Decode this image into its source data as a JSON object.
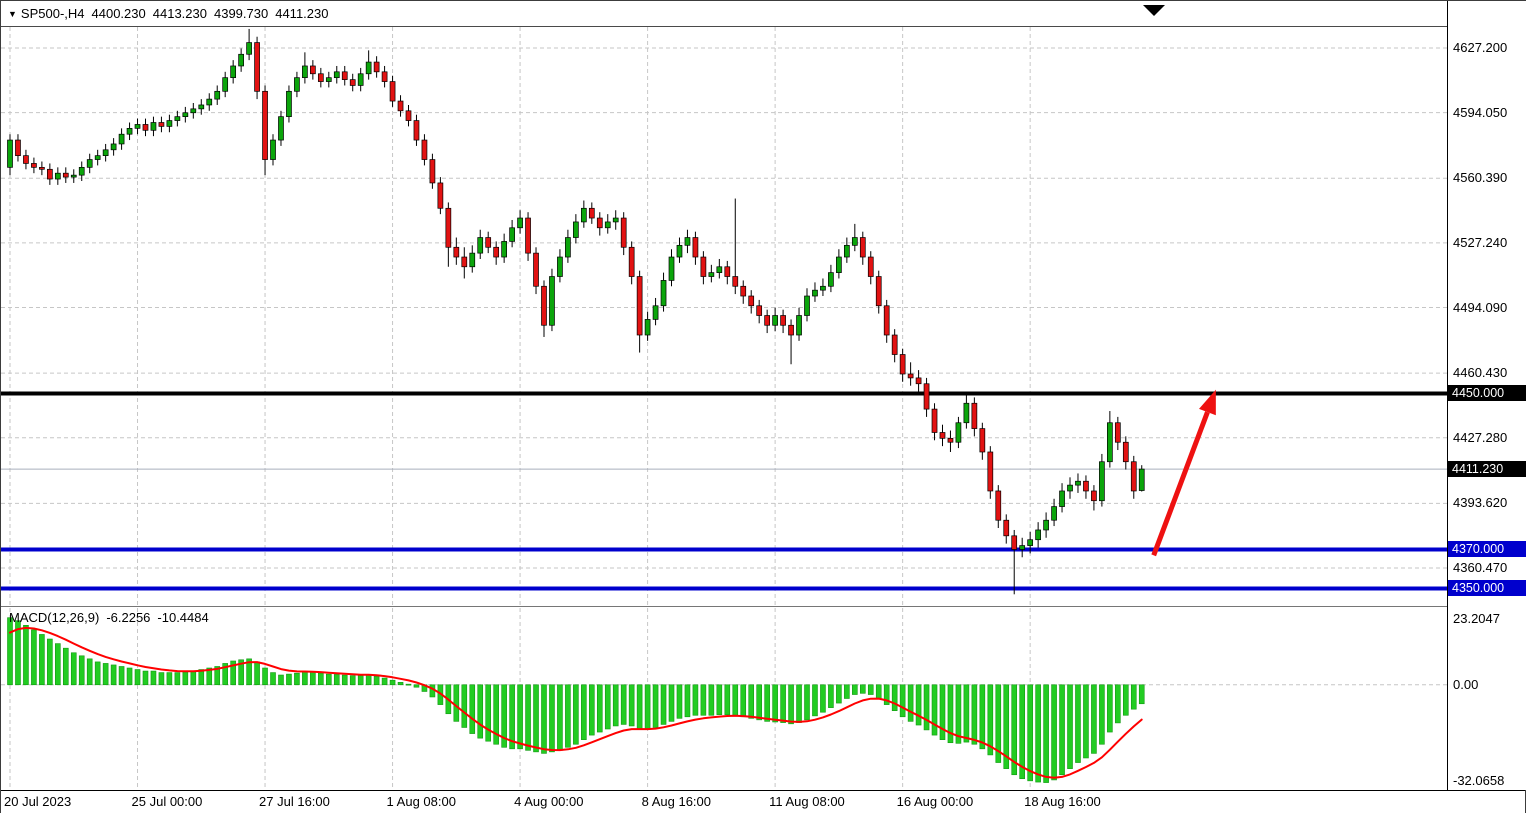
{
  "header": {
    "symbol_timeframe": "SP500-,H4",
    "open": "4400.230",
    "high": "4413.230",
    "low": "4399.730",
    "close": "4411.230"
  },
  "chart_data": {
    "type": "candlestick",
    "symbol": "SP500-",
    "timeframe": "H4",
    "x_axis": {
      "labels": [
        {
          "label": "20 Jul 2023",
          "bar": 0
        },
        {
          "label": "25 Jul 00:00",
          "bar": 16
        },
        {
          "label": "27 Jul 16:00",
          "bar": 32
        },
        {
          "label": "1 Aug 08:00",
          "bar": 48
        },
        {
          "label": "4 Aug 00:00",
          "bar": 64
        },
        {
          "label": "8 Aug 16:00",
          "bar": 80
        },
        {
          "label": "11 Aug 08:00",
          "bar": 96
        },
        {
          "label": "16 Aug 00:00",
          "bar": 112
        },
        {
          "label": "18 Aug 16:00",
          "bar": 128
        }
      ]
    },
    "y_axis": {
      "range": [
        4341.0,
        4638.5
      ],
      "gridlines": [
        {
          "label": "4627.200",
          "value": 4627.2
        },
        {
          "label": "4594.050",
          "value": 4594.05
        },
        {
          "label": "4560.390",
          "value": 4560.39
        },
        {
          "label": "4527.240",
          "value": 4527.24
        },
        {
          "label": "4494.090",
          "value": 4494.09
        },
        {
          "label": "4460.430",
          "value": 4460.43
        },
        {
          "label": "4427.280",
          "value": 4427.28
        },
        {
          "label": "4393.620",
          "value": 4393.62
        },
        {
          "label": "4360.470",
          "value": 4360.47
        }
      ],
      "tags": [
        {
          "label": "4450.000",
          "value": 4450.0,
          "bg": "#000000"
        },
        {
          "label": "4411.230",
          "value": 4411.23,
          "bg": "#000000"
        },
        {
          "label": "4370.000",
          "value": 4370.0,
          "bg": "#0000CD"
        },
        {
          "label": "4350.000",
          "value": 4350.0,
          "bg": "#0000CD"
        }
      ]
    },
    "candles": [
      [
        4566,
        4583,
        4562,
        4580
      ],
      [
        4580,
        4583,
        4569,
        4572
      ],
      [
        4572,
        4575,
        4565,
        4568
      ],
      [
        4568,
        4571,
        4563,
        4566
      ],
      [
        4566,
        4569,
        4562,
        4565
      ],
      [
        4565,
        4568,
        4557,
        4560
      ],
      [
        4560,
        4566,
        4557,
        4563
      ],
      [
        4563,
        4566,
        4558,
        4561
      ],
      [
        4561,
        4565,
        4558,
        4562
      ],
      [
        4562,
        4569,
        4559,
        4566
      ],
      [
        4566,
        4573,
        4563,
        4570
      ],
      [
        4570,
        4575,
        4567,
        4572
      ],
      [
        4572,
        4578,
        4569,
        4575
      ],
      [
        4575,
        4581,
        4572,
        4578
      ],
      [
        4578,
        4586,
        4575,
        4583
      ],
      [
        4583,
        4589,
        4580,
        4586
      ],
      [
        4586,
        4591,
        4583,
        4588
      ],
      [
        4588,
        4591,
        4582,
        4585
      ],
      [
        4585,
        4592,
        4582,
        4589
      ],
      [
        4589,
        4592,
        4584,
        4587
      ],
      [
        4587,
        4593,
        4584,
        4590
      ],
      [
        4590,
        4595,
        4587,
        4592
      ],
      [
        4592,
        4597,
        4589,
        4594
      ],
      [
        4594,
        4599,
        4591,
        4596
      ],
      [
        4596,
        4601,
        4593,
        4598
      ],
      [
        4598,
        4604,
        4595,
        4601
      ],
      [
        4601,
        4608,
        4598,
        4605
      ],
      [
        4605,
        4615,
        4602,
        4612
      ],
      [
        4612,
        4621,
        4609,
        4618
      ],
      [
        4618,
        4627,
        4615,
        4624
      ],
      [
        4624,
        4637,
        4621,
        4630
      ],
      [
        4630,
        4633,
        4601,
        4605
      ],
      [
        4605,
        4608,
        4562,
        4570
      ],
      [
        4570,
        4583,
        4567,
        4580
      ],
      [
        4580,
        4595,
        4577,
        4592
      ],
      [
        4592,
        4608,
        4589,
        4605
      ],
      [
        4605,
        4615,
        4602,
        4612
      ],
      [
        4612,
        4625,
        4609,
        4618
      ],
      [
        4618,
        4621,
        4611,
        4614
      ],
      [
        4614,
        4617,
        4607,
        4610
      ],
      [
        4610,
        4615,
        4607,
        4612
      ],
      [
        4612,
        4618,
        4609,
        4615
      ],
      [
        4615,
        4618,
        4608,
        4611
      ],
      [
        4611,
        4614,
        4605,
        4608
      ],
      [
        4608,
        4617,
        4605,
        4614
      ],
      [
        4614,
        4626,
        4611,
        4620
      ],
      [
        4620,
        4623,
        4612,
        4615
      ],
      [
        4615,
        4618,
        4607,
        4610
      ],
      [
        4610,
        4613,
        4597,
        4600
      ],
      [
        4600,
        4603,
        4592,
        4595
      ],
      [
        4595,
        4598,
        4587,
        4590
      ],
      [
        4590,
        4593,
        4577,
        4580
      ],
      [
        4580,
        4583,
        4567,
        4570
      ],
      [
        4570,
        4573,
        4555,
        4558
      ],
      [
        4558,
        4561,
        4542,
        4545
      ],
      [
        4545,
        4548,
        4515,
        4525
      ],
      [
        4525,
        4530,
        4516,
        4520
      ],
      [
        4520,
        4525,
        4509,
        4515
      ],
      [
        4515,
        4526,
        4512,
        4522
      ],
      [
        4522,
        4534,
        4519,
        4530
      ],
      [
        4530,
        4533,
        4522,
        4525
      ],
      [
        4525,
        4528,
        4516,
        4520
      ],
      [
        4520,
        4532,
        4517,
        4528
      ],
      [
        4528,
        4539,
        4525,
        4535
      ],
      [
        4535,
        4544,
        4532,
        4540
      ],
      [
        4540,
        4543,
        4518,
        4522
      ],
      [
        4522,
        4525,
        4501,
        4505
      ],
      [
        4505,
        4508,
        4479,
        4485
      ],
      [
        4485,
        4514,
        4482,
        4510
      ],
      [
        4510,
        4524,
        4507,
        4520
      ],
      [
        4520,
        4534,
        4517,
        4530
      ],
      [
        4530,
        4542,
        4527,
        4538
      ],
      [
        4538,
        4549,
        4535,
        4545
      ],
      [
        4545,
        4548,
        4537,
        4540
      ],
      [
        4540,
        4543,
        4531,
        4535
      ],
      [
        4535,
        4542,
        4532,
        4538
      ],
      [
        4538,
        4544,
        4534,
        4540
      ],
      [
        4540,
        4543,
        4521,
        4525
      ],
      [
        4525,
        4528,
        4506,
        4510
      ],
      [
        4510,
        4513,
        4471,
        4480
      ],
      [
        4480,
        4492,
        4477,
        4488
      ],
      [
        4488,
        4499,
        4485,
        4495
      ],
      [
        4495,
        4512,
        4492,
        4508
      ],
      [
        4508,
        4524,
        4505,
        4520
      ],
      [
        4520,
        4530,
        4517,
        4526
      ],
      [
        4526,
        4534,
        4522,
        4530
      ],
      [
        4530,
        4533,
        4516,
        4520
      ],
      [
        4520,
        4523,
        4506,
        4510
      ],
      [
        4510,
        4516,
        4507,
        4512
      ],
      [
        4512,
        4519,
        4509,
        4515
      ],
      [
        4515,
        4518,
        4506,
        4510
      ],
      [
        4510,
        4550,
        4501,
        4505
      ],
      [
        4505,
        4508,
        4496,
        4500
      ],
      [
        4500,
        4503,
        4491,
        4495
      ],
      [
        4495,
        4498,
        4486,
        4490
      ],
      [
        4490,
        4493,
        4481,
        4485
      ],
      [
        4485,
        4494,
        4482,
        4490
      ],
      [
        4490,
        4493,
        4481,
        4485
      ],
      [
        4485,
        4488,
        4465,
        4480
      ],
      [
        4480,
        4494,
        4477,
        4490
      ],
      [
        4490,
        4504,
        4487,
        4500
      ],
      [
        4500,
        4507,
        4497,
        4503
      ],
      [
        4503,
        4509,
        4500,
        4505
      ],
      [
        4505,
        4516,
        4502,
        4512
      ],
      [
        4512,
        4524,
        4509,
        4520
      ],
      [
        4520,
        4530,
        4517,
        4526
      ],
      [
        4526,
        4537,
        4523,
        4530
      ],
      [
        4530,
        4533,
        4516,
        4520
      ],
      [
        4520,
        4523,
        4506,
        4510
      ],
      [
        4510,
        4513,
        4491,
        4495
      ],
      [
        4495,
        4498,
        4476,
        4480
      ],
      [
        4480,
        4483,
        4466,
        4470
      ],
      [
        4470,
        4473,
        4456,
        4460
      ],
      [
        4460,
        4466,
        4454,
        4458
      ],
      [
        4458,
        4462,
        4451,
        4455
      ],
      [
        4455,
        4458,
        4438,
        4442
      ],
      [
        4442,
        4445,
        4426,
        4430
      ],
      [
        4430,
        4434,
        4423,
        4427
      ],
      [
        4427,
        4431,
        4420,
        4425
      ],
      [
        4425,
        4438,
        4422,
        4435
      ],
      [
        4435,
        4449,
        4432,
        4445
      ],
      [
        4445,
        4448,
        4428,
        4432
      ],
      [
        4432,
        4435,
        4416,
        4420
      ],
      [
        4420,
        4423,
        4396,
        4400
      ],
      [
        4400,
        4403,
        4381,
        4385
      ],
      [
        4385,
        4388,
        4373,
        4377
      ],
      [
        4377,
        4380,
        4347,
        4370
      ],
      [
        4370,
        4376,
        4366,
        4372
      ],
      [
        4372,
        4379,
        4368,
        4375
      ],
      [
        4375,
        4384,
        4371,
        4380
      ],
      [
        4380,
        4389,
        4376,
        4385
      ],
      [
        4385,
        4396,
        4382,
        4392
      ],
      [
        4392,
        4404,
        4389,
        4400
      ],
      [
        4400,
        4407,
        4396,
        4403
      ],
      [
        4403,
        4409,
        4399,
        4405
      ],
      [
        4405,
        4408,
        4396,
        4400
      ],
      [
        4400,
        4403,
        4390,
        4395
      ],
      [
        4395,
        4419,
        4392,
        4415
      ],
      [
        4415,
        4441,
        4412,
        4435
      ],
      [
        4435,
        4438,
        4421,
        4425
      ],
      [
        4425,
        4428,
        4411,
        4415
      ],
      [
        4415,
        4418,
        4396,
        4400
      ],
      [
        4400.23,
        4413.23,
        4399.73,
        4411.23
      ]
    ],
    "levels": [
      {
        "label": "4450.000",
        "price": 4450.0,
        "color": "#000000",
        "width": 4
      },
      {
        "label": "4370.000",
        "price": 4370.0,
        "color": "#0000CD",
        "width": 4
      },
      {
        "label": "4350.000",
        "price": 4350.0,
        "color": "#0000CD",
        "width": 4
      }
    ],
    "bid_line": {
      "price": 4411.23,
      "color": "#A9AFBC"
    },
    "trend_arrow": {
      "from_bar": 143.5,
      "from_price": 4367,
      "to_bar": 151.3,
      "to_price": 4452,
      "color": "#EE1111"
    },
    "macd": {
      "title": "MACD(12,26,9)",
      "value_main": "-6.2256",
      "value_signal": "-10.4484",
      "y_axis": {
        "range": [
          -34.5,
          25.5
        ],
        "labels": [
          {
            "label": "23.2047",
            "value": 23.2047
          },
          {
            "label": "0.00",
            "value": 0
          },
          {
            "label": "-32.0658",
            "value": -32.0658
          }
        ]
      },
      "histogram": [
        22,
        21,
        19.5,
        18,
        16.5,
        15,
        13.5,
        12,
        10.5,
        9.5,
        8.5,
        7.5,
        7,
        6.5,
        6,
        5.5,
        5,
        4.5,
        4.5,
        4,
        4,
        4,
        4.2,
        4.5,
        5,
        5.5,
        6,
        7,
        7.8,
        8.2,
        8.5,
        7.5,
        5.5,
        4,
        3.2,
        3.5,
        3.8,
        4.2,
        4.2,
        3.8,
        3.5,
        3.4,
        3.2,
        3,
        3,
        3.2,
        2.8,
        2.2,
        1.5,
        0.8,
        0.2,
        -0.8,
        -2.2,
        -4,
        -6.5,
        -9.5,
        -12,
        -14,
        -16,
        -17.5,
        -18.5,
        -19.5,
        -20.5,
        -21,
        -21,
        -21.5,
        -22,
        -22.5,
        -22,
        -21.5,
        -20.5,
        -19.5,
        -18,
        -16.5,
        -15.5,
        -14.5,
        -13.5,
        -13,
        -13.5,
        -14.5,
        -14.5,
        -14,
        -13,
        -12,
        -11,
        -10.5,
        -10,
        -10,
        -10,
        -9.8,
        -9.8,
        -10,
        -10.5,
        -11,
        -11.5,
        -12,
        -12.2,
        -12.4,
        -12.8,
        -12.4,
        -11.5,
        -10.2,
        -9,
        -7.5,
        -6,
        -4.5,
        -3.2,
        -2.8,
        -3.2,
        -4.5,
        -6.5,
        -8.5,
        -10.5,
        -12,
        -13.2,
        -14.8,
        -16.5,
        -18,
        -19,
        -19.2,
        -18.8,
        -19.5,
        -21,
        -23,
        -25.5,
        -27.5,
        -29.5,
        -30.8,
        -31.5,
        -31.9,
        -32.0658,
        -31.2,
        -29.5,
        -27.5,
        -25.5,
        -24,
        -22.5,
        -19.5,
        -15.5,
        -12.5,
        -10,
        -8,
        -6.2256
      ]
    },
    "colors": {
      "up": "#0BA50B",
      "down": "#E21212",
      "candle_outline": "#000000",
      "wick": "#000000",
      "grid": "#C6C6C6",
      "macd_bar": "#22CC22",
      "macd_bar_border": "#119911",
      "signal": "#FF0000"
    }
  }
}
